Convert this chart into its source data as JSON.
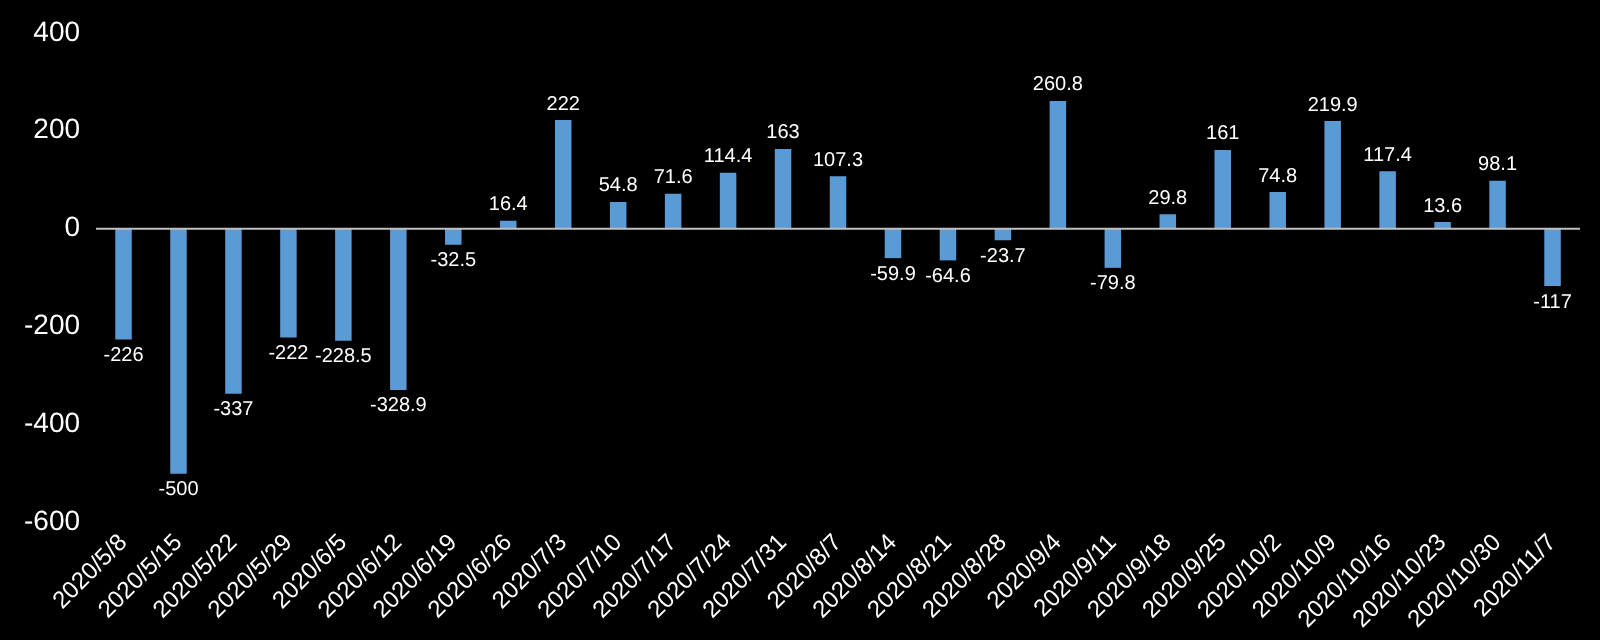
{
  "chart_data": {
    "type": "bar",
    "categories": [
      "2020/5/8",
      "2020/5/15",
      "2020/5/22",
      "2020/5/29",
      "2020/6/5",
      "2020/6/12",
      "2020/6/19",
      "2020/6/26",
      "2020/7/3",
      "2020/7/10",
      "2020/7/17",
      "2020/7/24",
      "2020/7/31",
      "2020/8/7",
      "2020/8/14",
      "2020/8/21",
      "2020/8/28",
      "2020/9/4",
      "2020/9/11",
      "2020/9/18",
      "2020/9/25",
      "2020/10/2",
      "2020/10/9",
      "2020/10/16",
      "2020/10/23",
      "2020/10/30",
      "2020/11/7"
    ],
    "values": [
      -226,
      -500,
      -337,
      -222,
      -228.5,
      -328.9,
      -32.5,
      16.4,
      222,
      54.8,
      71.6,
      114.4,
      163,
      107.3,
      -59.9,
      -64.6,
      -23.7,
      260.8,
      -79.8,
      29.8,
      161,
      74.8,
      219.9,
      117.4,
      13.6,
      98.1,
      -117
    ],
    "color": "#5b9bd5",
    "ylim": [
      -600,
      400
    ],
    "yticks": [
      -600,
      -400,
      -200,
      0,
      200,
      400
    ],
    "grid": false,
    "ref_lines": [
      {
        "axis": "y",
        "value": 0,
        "color": "#bfbfbf"
      }
    ],
    "data_labels": true
  }
}
